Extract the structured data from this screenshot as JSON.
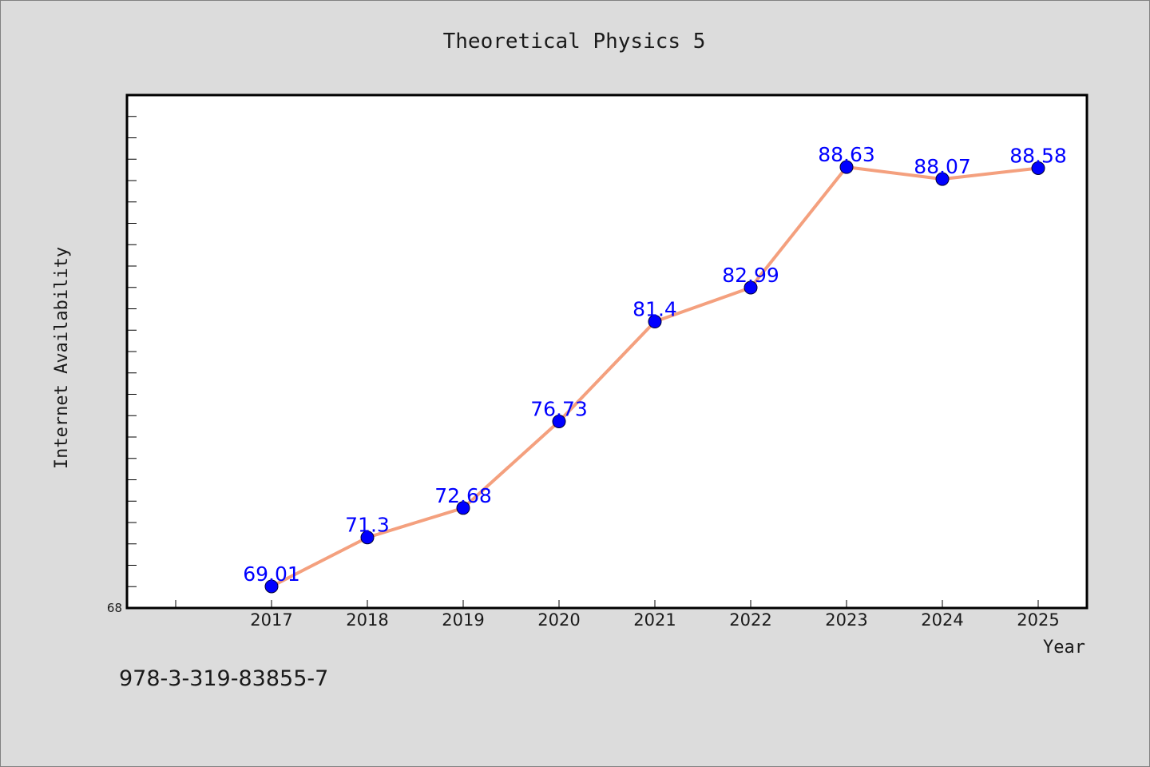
{
  "chart_data": {
    "type": "line",
    "title": "Theoretical Physics 5",
    "xlabel": "Year",
    "ylabel": "Internet Availability",
    "x": [
      "2017",
      "2018",
      "2019",
      "2020",
      "2021",
      "2022",
      "2023",
      "2024",
      "2025"
    ],
    "series": [
      {
        "values": [
          69.01,
          71.3,
          72.68,
          76.73,
          81.4,
          82.99,
          88.63,
          88.07,
          88.58
        ],
        "labels": [
          "69.01",
          "71.3",
          "72.68",
          "76.73",
          "81.4",
          "82.99",
          "88.63",
          "88.07",
          "88.58"
        ],
        "line_color": "#f4a07e",
        "marker_color": "#0000ff"
      }
    ],
    "ylim": [
      68,
      92
    ],
    "y_tick_label": "68",
    "grid": false,
    "legend": "none",
    "label_color": "#0000ff",
    "background": "#dcdcdc",
    "plot_background": "#ffffff"
  },
  "footer": {
    "isbn": "978-3-319-83855-7"
  }
}
